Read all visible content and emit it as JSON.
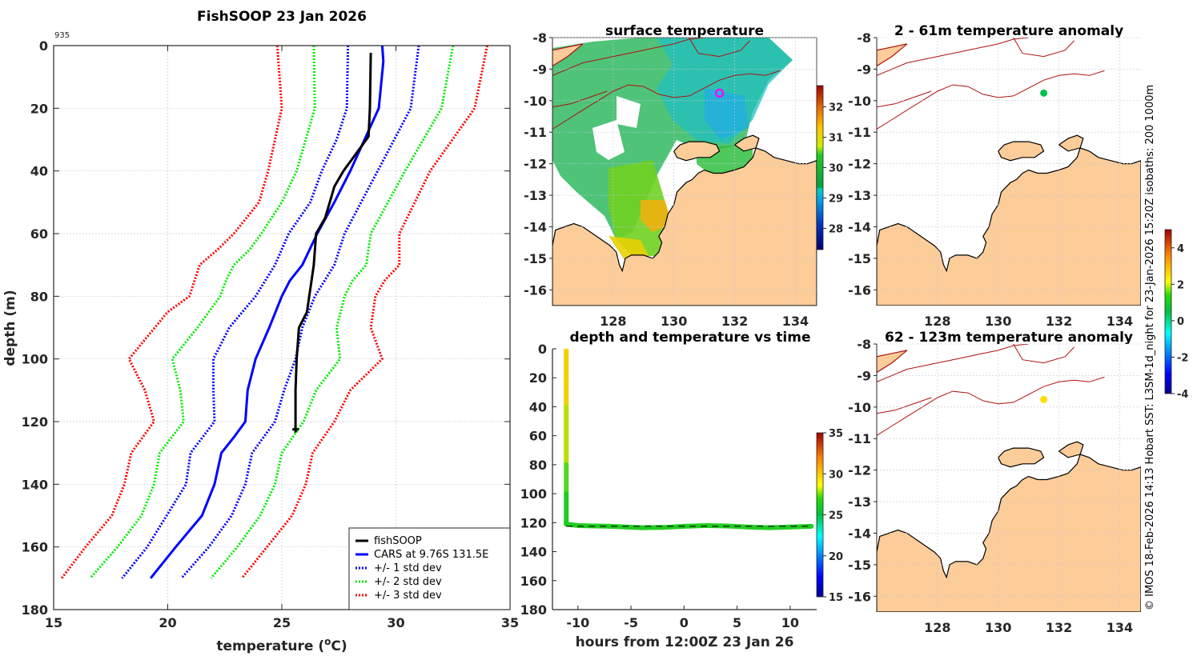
{
  "figure": {
    "credit": "© IMOS 18-Feb-2026 14:13 Hobart SST: L3SM-1d_night for 23-Jan-2026 15:20Z isobaths: 200  1000m"
  },
  "chart_data": [
    {
      "id": "profile",
      "type": "line",
      "title": "FishSOOP 23 Jan 2026",
      "corner_label": "935",
      "xlabel": "temperature (°C)",
      "xlabel_main": "temperature (",
      "xlabel_sup": "o",
      "xlabel_end": "C)",
      "ylabel": "depth (m)",
      "xlim": [
        15,
        35
      ],
      "ylim": [
        0,
        180
      ],
      "y_reversed": true,
      "grid": true,
      "xticks": [
        15,
        20,
        25,
        30,
        35
      ],
      "yticks": [
        0,
        20,
        40,
        60,
        80,
        100,
        120,
        140,
        160,
        180
      ],
      "legend_position": "bottom-right",
      "series": [
        {
          "name": "fishSOOP",
          "color": "#000000",
          "style": "solid",
          "points": [
            [
              28.9,
              2.3
            ],
            [
              28.86,
              20
            ],
            [
              28.8,
              29
            ],
            [
              28.2,
              35
            ],
            [
              27.7,
              40
            ],
            [
              27.3,
              45
            ],
            [
              26.9,
              55
            ],
            [
              26.5,
              60
            ],
            [
              26.4,
              70
            ],
            [
              26.3,
              75
            ],
            [
              26.2,
              80
            ],
            [
              26.1,
              85
            ],
            [
              25.75,
              90
            ],
            [
              25.65,
              100
            ],
            [
              25.6,
              110
            ],
            [
              25.6,
              122.5
            ]
          ]
        },
        {
          "name": "CARS at 9.76S 131.5E",
          "color": "#0000ff",
          "style": "solid",
          "points": [
            [
              29.4,
              0
            ],
            [
              29.45,
              5
            ],
            [
              29.25,
              20
            ],
            [
              28.0,
              40
            ],
            [
              27.3,
              50
            ],
            [
              26.55,
              60
            ],
            [
              25.9,
              70
            ],
            [
              25.35,
              75
            ],
            [
              25.0,
              80
            ],
            [
              24.45,
              90
            ],
            [
              23.85,
              100
            ],
            [
              23.5,
              110
            ],
            [
              23.4,
              120
            ],
            [
              22.9,
              125
            ],
            [
              22.35,
              130
            ],
            [
              22.05,
              140
            ],
            [
              21.5,
              150
            ],
            [
              20.35,
              160
            ],
            [
              19.25,
              170
            ]
          ]
        },
        {
          "name": "+/- 1 std dev",
          "color": "#0000ff",
          "style": "dotted",
          "points_low": [
            [
              27.9,
              0
            ],
            [
              27.85,
              20
            ],
            [
              27.4,
              30
            ],
            [
              26.75,
              40
            ],
            [
              26.25,
              50
            ],
            [
              25.3,
              60
            ],
            [
              24.7,
              70
            ],
            [
              23.85,
              80
            ],
            [
              22.7,
              90
            ],
            [
              22.0,
              100
            ],
            [
              22.0,
              110
            ],
            [
              22.05,
              120
            ],
            [
              21.0,
              130
            ],
            [
              20.8,
              140
            ],
            [
              19.95,
              150
            ],
            [
              19.1,
              160
            ],
            [
              18.0,
              170
            ]
          ],
          "points_high": [
            [
              31.0,
              0
            ],
            [
              30.65,
              20
            ],
            [
              29.2,
              40
            ],
            [
              27.75,
              60
            ],
            [
              27.3,
              70
            ],
            [
              26.45,
              80
            ],
            [
              25.9,
              90
            ],
            [
              25.6,
              100
            ],
            [
              25.1,
              110
            ],
            [
              24.7,
              120
            ],
            [
              23.7,
              130
            ],
            [
              23.4,
              140
            ],
            [
              22.8,
              150
            ],
            [
              21.8,
              160
            ],
            [
              20.6,
              170
            ]
          ]
        },
        {
          "name": "+/- 2 std dev",
          "color": "#00ee00",
          "style": "dotted",
          "points_low": [
            [
              26.4,
              0
            ],
            [
              26.45,
              20
            ],
            [
              25.65,
              40
            ],
            [
              25.0,
              50
            ],
            [
              24.1,
              60
            ],
            [
              23.6,
              65
            ],
            [
              22.9,
              70
            ],
            [
              22.55,
              75
            ],
            [
              22.3,
              80
            ],
            [
              21.3,
              90
            ],
            [
              20.2,
              100
            ],
            [
              20.55,
              110
            ],
            [
              20.7,
              120
            ],
            [
              19.65,
              130
            ],
            [
              19.4,
              140
            ],
            [
              18.85,
              150
            ],
            [
              17.8,
              160
            ],
            [
              16.6,
              170
            ]
          ],
          "points_high": [
            [
              32.5,
              0
            ],
            [
              32.0,
              20
            ],
            [
              30.4,
              40
            ],
            [
              28.9,
              60
            ],
            [
              28.7,
              70
            ],
            [
              28.1,
              75
            ],
            [
              27.75,
              80
            ],
            [
              27.4,
              90
            ],
            [
              27.55,
              100
            ],
            [
              26.5,
              110
            ],
            [
              25.95,
              120
            ],
            [
              25.0,
              130
            ],
            [
              24.7,
              140
            ],
            [
              24.05,
              150
            ],
            [
              23.05,
              160
            ],
            [
              21.9,
              170
            ]
          ]
        },
        {
          "name": "+/- 3 std dev",
          "color": "#ff0000",
          "style": "dotted",
          "points_low": [
            [
              24.8,
              0
            ],
            [
              25.0,
              20
            ],
            [
              24.4,
              40
            ],
            [
              24.0,
              50
            ],
            [
              22.9,
              60
            ],
            [
              22.2,
              65
            ],
            [
              21.4,
              70
            ],
            [
              20.95,
              80
            ],
            [
              20.0,
              85
            ],
            [
              18.3,
              100
            ],
            [
              19.0,
              110
            ],
            [
              19.4,
              120
            ],
            [
              18.4,
              130
            ],
            [
              18.1,
              140
            ],
            [
              17.55,
              150
            ],
            [
              16.4,
              160
            ],
            [
              15.35,
              170
            ]
          ],
          "points_high": [
            [
              34.0,
              0
            ],
            [
              33.45,
              20
            ],
            [
              31.5,
              40
            ],
            [
              30.15,
              60
            ],
            [
              30.15,
              70
            ],
            [
              29.5,
              75
            ],
            [
              29.1,
              80
            ],
            [
              28.9,
              90
            ],
            [
              29.4,
              100
            ],
            [
              28.0,
              110
            ],
            [
              27.3,
              120
            ],
            [
              26.35,
              130
            ],
            [
              26.05,
              140
            ],
            [
              25.45,
              150
            ],
            [
              24.35,
              160
            ],
            [
              23.25,
              170
            ]
          ]
        }
      ],
      "legend": [
        "fishSOOP",
        "CARS at 9.76S 131.5E",
        "+/- 1 std dev",
        "+/- 2 std dev",
        "+/- 3 std dev"
      ]
    },
    {
      "id": "surface-map",
      "type": "heatmap",
      "title": "surface temperature",
      "xlim": [
        126.0,
        134.7
      ],
      "ylim": [
        -16.5,
        -8
      ],
      "xticks": [
        128,
        130,
        132,
        134
      ],
      "yticks": [
        -8,
        -9,
        -10,
        -11,
        -12,
        -13,
        -14,
        -15,
        -16
      ],
      "colorbar": {
        "range": [
          27.3,
          32.7
        ],
        "ticks": [
          28,
          29,
          30,
          31,
          32
        ]
      },
      "marker": {
        "lon": 131.5,
        "lat": -9.76,
        "color": "#ff00ff",
        "shape": "ring"
      },
      "land_color": "#fccc99",
      "isobath_color": "#b01010"
    },
    {
      "id": "anomaly-shallow",
      "type": "heatmap",
      "title": "2 - 61m temperature anomaly",
      "xlim": [
        126.0,
        134.7
      ],
      "ylim": [
        -16.5,
        -8
      ],
      "xticks": [
        128,
        130,
        132,
        134
      ],
      "yticks": [
        -8,
        -9,
        -10,
        -11,
        -12,
        -13,
        -14,
        -15,
        -16
      ],
      "marker": {
        "lon": 131.5,
        "lat": -9.76,
        "value": 0.3,
        "color": "#00c050"
      },
      "land_color": "#fccc99"
    },
    {
      "id": "time-series",
      "type": "scatter",
      "title": "depth and temperature vs time",
      "xlabel": "hours from 12:00Z 23 Jan 26",
      "ylabel": "",
      "xlim": [
        -12.4,
        12.5
      ],
      "ylim": [
        0,
        180
      ],
      "y_reversed": true,
      "xticks": [
        -10,
        -5,
        0,
        5,
        10
      ],
      "yticks": [
        0,
        20,
        40,
        60,
        80,
        100,
        120,
        140,
        160,
        180
      ],
      "colorbar": {
        "range": [
          15,
          35
        ],
        "ticks": [
          15,
          20,
          25,
          30,
          35
        ]
      },
      "track": [
        [
          -11.1,
          0,
          30.0
        ],
        [
          -11.1,
          20,
          29.5
        ],
        [
          -11.1,
          40,
          28.5
        ],
        [
          -11.1,
          60,
          27.5
        ],
        [
          -11.1,
          80,
          26.5
        ],
        [
          -11.1,
          100,
          25.8
        ],
        [
          -11.1,
          121,
          25.6
        ],
        [
          -10,
          122,
          25.6
        ],
        [
          -7,
          122.5,
          25.6
        ],
        [
          -4,
          123.5,
          25.6
        ],
        [
          -2,
          123.3,
          25.6
        ],
        [
          0,
          122.5,
          25.6
        ],
        [
          2,
          122,
          25.6
        ],
        [
          4,
          122.3,
          25.6
        ],
        [
          6,
          123,
          25.6
        ],
        [
          8,
          123.5,
          25.6
        ],
        [
          10,
          123,
          25.6
        ],
        [
          12,
          122.5,
          25.6
        ]
      ],
      "reference_depth": 122.5
    },
    {
      "id": "anomaly-deep",
      "type": "heatmap",
      "title": "62 - 123m temperature anomaly",
      "xlim": [
        126.0,
        134.7
      ],
      "ylim": [
        -16.5,
        -8
      ],
      "xticks": [
        128,
        130,
        132,
        134
      ],
      "yticks": [
        -8,
        -9,
        -10,
        -11,
        -12,
        -13,
        -14,
        -15,
        -16
      ],
      "marker": {
        "lon": 131.5,
        "lat": -9.76,
        "value": 2.2,
        "color": "#ffdd00"
      },
      "colorbar": {
        "range": [
          -4,
          5
        ],
        "ticks": [
          -4,
          -2,
          0,
          2,
          4
        ]
      },
      "land_color": "#fccc99"
    }
  ]
}
